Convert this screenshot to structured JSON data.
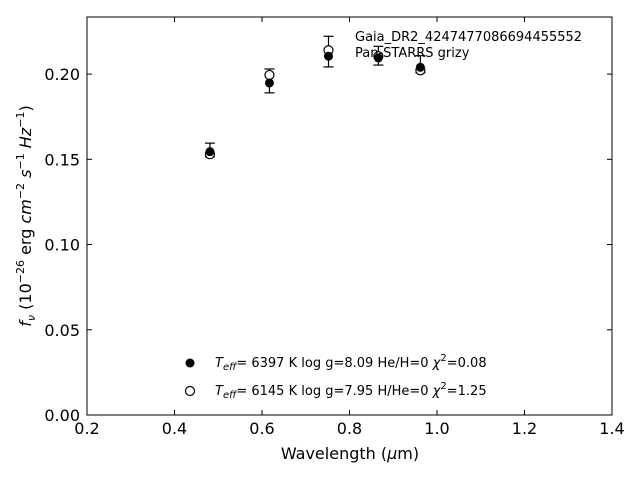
{
  "chart_data": {
    "type": "scatter",
    "title": "",
    "xlabel": "Wavelength (μm)",
    "xlabel_parts": {
      "pre": "Wavelength (",
      "mu": "μ",
      "post": "m)"
    },
    "ylabel": "f_ν (10^-26 erg cm^-2 s^-1 Hz^-1)",
    "xlim": [
      0.2,
      1.4
    ],
    "ylim": [
      0.0,
      0.2335
    ],
    "xticks": [
      0.2,
      0.4,
      0.6,
      0.8,
      1.0,
      1.2,
      1.4
    ],
    "xtick_labels": [
      "0.2",
      "0.4",
      "0.6",
      "0.8",
      "1.0",
      "1.2",
      "1.4"
    ],
    "yticks": [
      0.0,
      0.05,
      0.1,
      0.15,
      0.2
    ],
    "ytick_labels": [
      "0.00",
      "0.05",
      "0.10",
      "0.15",
      "0.20"
    ],
    "grid": false,
    "annotation": {
      "object": "Gaia_DR2_4247477086694455552",
      "survey": "Pan-STARRS grizy"
    },
    "observed": {
      "x": [
        0.481,
        0.617,
        0.752,
        0.866,
        0.962
      ],
      "y": [
        0.1555,
        0.196,
        0.2132,
        0.2108,
        0.2058
      ],
      "yerr": [
        0.004,
        0.007,
        0.009,
        0.0055,
        0.005
      ]
    },
    "series": [
      {
        "marker": "filled-circle",
        "x": [
          0.481,
          0.617,
          0.752,
          0.866,
          0.962
        ],
        "y": [
          0.1545,
          0.1948,
          0.2105,
          0.2095,
          0.204
        ],
        "label": {
          "teff": "6397 K",
          "logg": "log g=8.09",
          "comp": "He/H=0",
          "chi2": "=0.08"
        }
      },
      {
        "marker": "open-circle",
        "x": [
          0.481,
          0.617,
          0.752,
          0.866,
          0.962
        ],
        "y": [
          0.153,
          0.1995,
          0.214,
          0.2105,
          0.2022
        ],
        "label": {
          "teff": "6145 K",
          "logg": "log g=7.95",
          "comp": "H/He=0",
          "chi2": "=1.25"
        }
      }
    ],
    "legend_placement": "lower-center",
    "colors": {
      "axis": "#000000",
      "marker": "#000000",
      "background": "#ffffff"
    }
  }
}
